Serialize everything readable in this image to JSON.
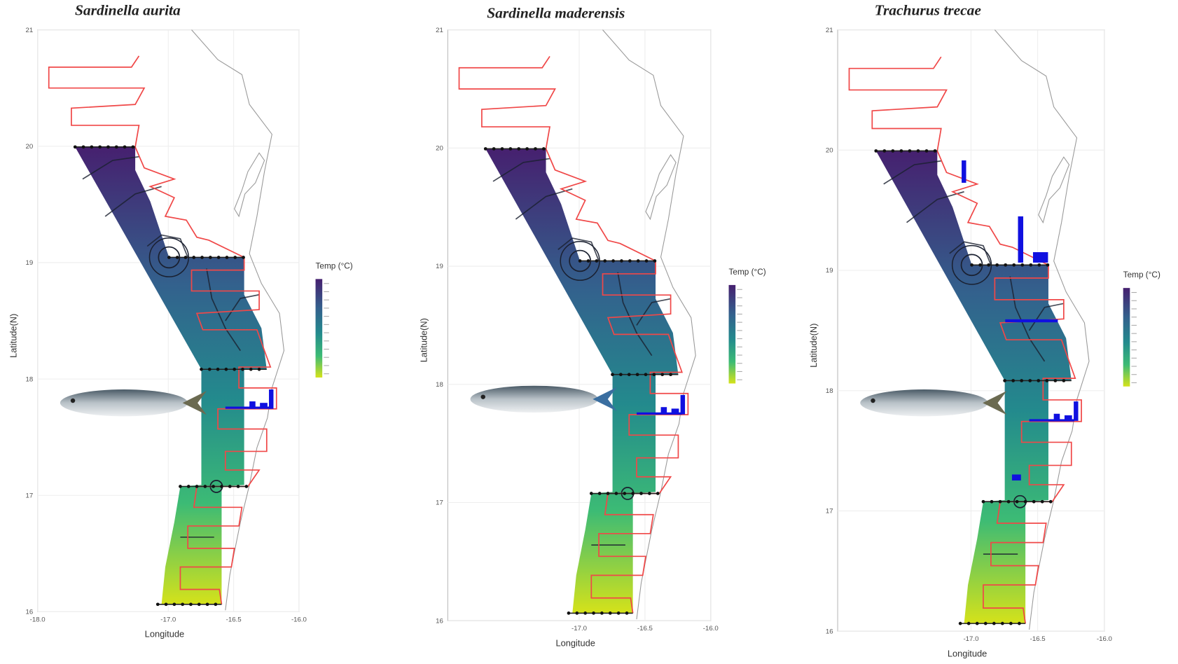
{
  "panels": [
    {
      "title": "Sardinella aurita",
      "x_label": "Longitude",
      "y_label": "Latitude(N)",
      "legend_title": "Temp (°C)",
      "xlim": [
        -18,
        -16
      ],
      "ylim": [
        16,
        21
      ],
      "xticks": [
        {
          "value": -18,
          "label": "-18.0"
        },
        {
          "value": -17,
          "label": "-17.0"
        },
        {
          "value": -16.5,
          "label": "-16.5"
        },
        {
          "value": -16,
          "label": "-16.0"
        }
      ],
      "yticks": [
        21,
        20,
        19,
        18,
        17,
        16
      ]
    },
    {
      "title": "Sardinella maderensis",
      "x_label": "Longitude",
      "y_label": "Latitude(N)",
      "legend_title": "Temp (°C)",
      "xlim": [
        -18,
        -16
      ],
      "ylim": [
        16,
        21
      ],
      "xticks": [
        {
          "value": -17,
          "label": "-17.0"
        },
        {
          "value": -16.5,
          "label": "-16.5"
        },
        {
          "value": -16,
          "label": "-16.0"
        }
      ],
      "yticks": [
        21,
        20,
        19,
        18,
        17,
        16
      ]
    },
    {
      "title": "Trachurus trecae",
      "x_label": "Longitude",
      "y_label": "Latitude(N)",
      "legend_title": "Temp (°C)",
      "xlim": [
        -18,
        -16
      ],
      "ylim": [
        16,
        21
      ],
      "xticks": [
        {
          "value": -17,
          "label": "-17.0"
        },
        {
          "value": -16.5,
          "label": "-16.5"
        },
        {
          "value": -16,
          "label": "-16.0"
        }
      ],
      "yticks": [
        21,
        20,
        19,
        18,
        17,
        16
      ]
    }
  ]
}
